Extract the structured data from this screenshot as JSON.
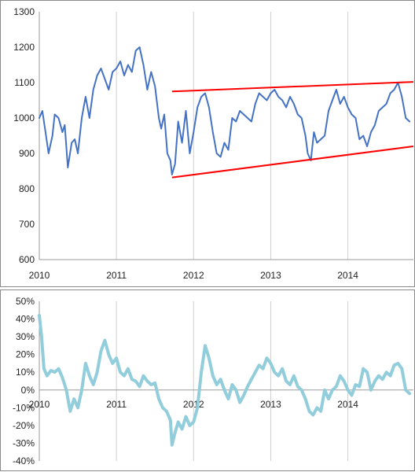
{
  "chart_data": [
    {
      "type": "line",
      "title": "",
      "xlabel": "",
      "ylabel": "",
      "x_ticks": [
        "2010",
        "2011",
        "2012",
        "2013",
        "2014"
      ],
      "y_ticks": [
        "600",
        "700",
        "800",
        "900",
        "1000",
        "1100",
        "1200",
        "1300"
      ],
      "xlim": [
        2010.0,
        2014.85
      ],
      "ylim": [
        600,
        1300
      ],
      "grid": "vertical",
      "colors": {
        "series": "#4472c4",
        "trendlines": "#ff0000"
      },
      "series": [
        {
          "x": [
            2010.0,
            2010.04,
            2010.08,
            2010.12,
            2010.17,
            2010.2,
            2010.25,
            2010.3,
            2010.33,
            2010.37,
            2010.42,
            2010.46,
            2010.5,
            2010.55,
            2010.6,
            2010.65,
            2010.7,
            2010.75,
            2010.8,
            2010.85,
            2010.9,
            2010.95,
            2011.0,
            2011.05,
            2011.1,
            2011.15,
            2011.2,
            2011.25,
            2011.3,
            2011.35,
            2011.4,
            2011.45,
            2011.5,
            2011.55,
            2011.58,
            2011.62,
            2011.66,
            2011.7,
            2011.72,
            2011.76,
            2011.8,
            2011.85,
            2011.9,
            2011.95,
            2012.0,
            2012.05,
            2012.1,
            2012.15,
            2012.2,
            2012.25,
            2012.3,
            2012.35,
            2012.4,
            2012.45,
            2012.5,
            2012.55,
            2012.6,
            2012.65,
            2012.7,
            2012.75,
            2012.8,
            2012.85,
            2012.9,
            2012.95,
            2013.0,
            2013.05,
            2013.1,
            2013.15,
            2013.2,
            2013.25,
            2013.3,
            2013.35,
            2013.4,
            2013.45,
            2013.48,
            2013.52,
            2013.56,
            2013.6,
            2013.65,
            2013.7,
            2013.75,
            2013.8,
            2013.85,
            2013.9,
            2013.95,
            2014.0,
            2014.05,
            2014.1,
            2014.15,
            2014.2,
            2014.25,
            2014.3,
            2014.35,
            2014.4,
            2014.45,
            2014.5,
            2014.55,
            2014.6,
            2014.65,
            2014.7,
            2014.75,
            2014.8
          ],
          "values": [
            1000,
            1020,
            960,
            900,
            950,
            1010,
            1000,
            960,
            980,
            860,
            930,
            940,
            900,
            1000,
            1060,
            1000,
            1080,
            1120,
            1140,
            1110,
            1080,
            1130,
            1140,
            1160,
            1120,
            1150,
            1130,
            1190,
            1200,
            1150,
            1080,
            1130,
            1090,
            1000,
            970,
            1010,
            900,
            880,
            840,
            870,
            990,
            930,
            1020,
            900,
            960,
            1030,
            1060,
            1070,
            1030,
            960,
            900,
            890,
            930,
            910,
            1000,
            990,
            1020,
            1010,
            1000,
            990,
            1040,
            1070,
            1060,
            1050,
            1070,
            1080,
            1060,
            1050,
            1030,
            1060,
            1040,
            1010,
            1000,
            950,
            900,
            880,
            960,
            930,
            940,
            950,
            1020,
            1050,
            1080,
            1040,
            1060,
            1030,
            1010,
            1000,
            940,
            950,
            920,
            960,
            980,
            1020,
            1030,
            1040,
            1070,
            1080,
            1100,
            1060,
            1000,
            990
          ]
        }
      ],
      "trendlines": [
        {
          "x": [
            2011.72,
            2014.85
          ],
          "values": [
            1075,
            1102
          ]
        },
        {
          "x": [
            2011.72,
            2014.85
          ],
          "values": [
            832,
            920
          ]
        }
      ]
    },
    {
      "type": "line",
      "title": "",
      "xlabel": "",
      "ylabel": "",
      "x_ticks": [
        "2010",
        "2011",
        "2012",
        "2013",
        "2014"
      ],
      "y_ticks": [
        "50%",
        "40%",
        "30%",
        "20%",
        "10%",
        "0%",
        "-10%",
        "-20%",
        "-30%",
        "-40%"
      ],
      "xlim": [
        2010.0,
        2014.85
      ],
      "ylim": [
        -40,
        50
      ],
      "grid": "vertical",
      "colors": {
        "series": "#92cddc"
      },
      "series": [
        {
          "x": [
            2010.0,
            2010.03,
            2010.06,
            2010.1,
            2010.15,
            2010.2,
            2010.25,
            2010.3,
            2010.35,
            2010.4,
            2010.45,
            2010.5,
            2010.55,
            2010.6,
            2010.65,
            2010.7,
            2010.75,
            2010.8,
            2010.85,
            2010.9,
            2010.95,
            2011.0,
            2011.05,
            2011.1,
            2011.15,
            2011.2,
            2011.25,
            2011.3,
            2011.35,
            2011.4,
            2011.45,
            2011.5,
            2011.55,
            2011.6,
            2011.65,
            2011.7,
            2011.72,
            2011.76,
            2011.8,
            2011.85,
            2011.9,
            2011.95,
            2012.0,
            2012.05,
            2012.1,
            2012.15,
            2012.2,
            2012.25,
            2012.3,
            2012.35,
            2012.4,
            2012.45,
            2012.5,
            2012.55,
            2012.6,
            2012.65,
            2012.7,
            2012.75,
            2012.8,
            2012.85,
            2012.9,
            2012.95,
            2013.0,
            2013.05,
            2013.1,
            2013.15,
            2013.2,
            2013.25,
            2013.3,
            2013.35,
            2013.4,
            2013.45,
            2013.5,
            2013.55,
            2013.6,
            2013.65,
            2013.7,
            2013.75,
            2013.8,
            2013.85,
            2013.9,
            2013.95,
            2014.0,
            2014.05,
            2014.1,
            2014.15,
            2014.2,
            2014.25,
            2014.3,
            2014.35,
            2014.4,
            2014.45,
            2014.5,
            2014.55,
            2014.6,
            2014.65,
            2014.7,
            2014.75,
            2014.8
          ],
          "values": [
            42,
            30,
            12,
            8,
            11,
            10,
            12,
            7,
            0,
            -12,
            -5,
            -10,
            0,
            15,
            8,
            3,
            10,
            22,
            28,
            20,
            15,
            18,
            10,
            8,
            12,
            6,
            5,
            2,
            8,
            5,
            3,
            4,
            -5,
            -10,
            -12,
            -17,
            -31,
            -24,
            -18,
            -22,
            -15,
            -20,
            -18,
            -10,
            10,
            25,
            18,
            8,
            3,
            6,
            0,
            -5,
            3,
            0,
            -7,
            -3,
            2,
            6,
            10,
            14,
            12,
            18,
            15,
            10,
            8,
            12,
            5,
            3,
            8,
            2,
            0,
            -5,
            -12,
            -14,
            -10,
            -12,
            0,
            -5,
            0,
            2,
            8,
            5,
            0,
            -3,
            3,
            2,
            12,
            10,
            0,
            5,
            8,
            6,
            10,
            8,
            14,
            15,
            12,
            0,
            -2
          ]
        }
      ]
    }
  ]
}
